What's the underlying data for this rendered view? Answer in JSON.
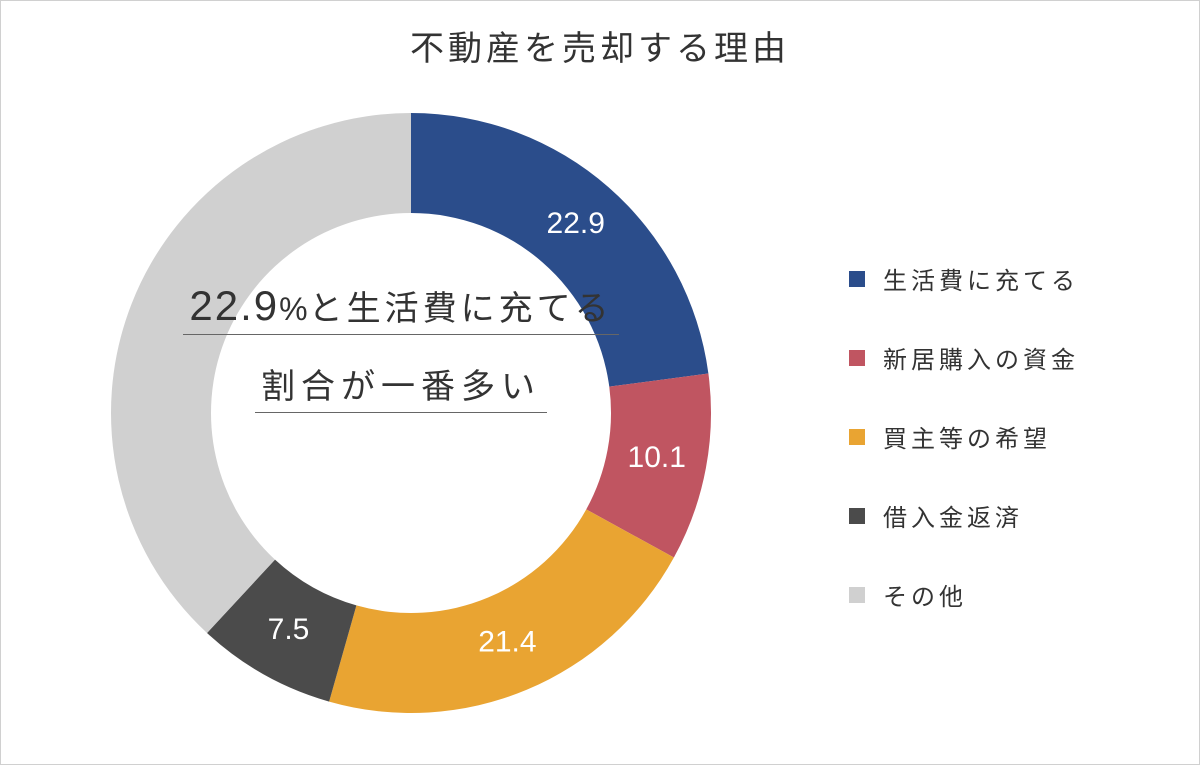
{
  "chart": {
    "type": "donut",
    "title": "不動産を売却する理由",
    "background_color": "#ffffff",
    "border_color": "#d0d0d0",
    "outer_radius": 300,
    "inner_radius": 200,
    "start_angle_deg": 0,
    "center_text": {
      "line1_big": "22.9",
      "line1_pct": "%",
      "line1_rest": "と生活費に充てる",
      "line2": "割合が一番多い",
      "underline_color": "#666666",
      "fontsize_big": 42,
      "fontsize_pct": 32,
      "fontsize_rest": 34,
      "color": "#333333"
    },
    "slices": [
      {
        "label": "生活費に充てる",
        "value": 22.9,
        "color": "#2b4d8b",
        "show_value": true
      },
      {
        "label": "新居購入の資金",
        "value": 10.1,
        "color": "#c05561",
        "show_value": true
      },
      {
        "label": "買主等の希望",
        "value": 21.4,
        "color": "#e9a432",
        "show_value": true
      },
      {
        "label": "借入金返済",
        "value": 7.5,
        "color": "#4b4b4b",
        "show_value": true
      },
      {
        "label": "その他",
        "value": 38.1,
        "color": "#d0d0d0",
        "show_value": false
      }
    ],
    "slice_label": {
      "fontsize": 30,
      "color": "#ffffff"
    },
    "legend": {
      "marker_size": 16,
      "fontsize": 24,
      "text_color": "#333333"
    }
  }
}
